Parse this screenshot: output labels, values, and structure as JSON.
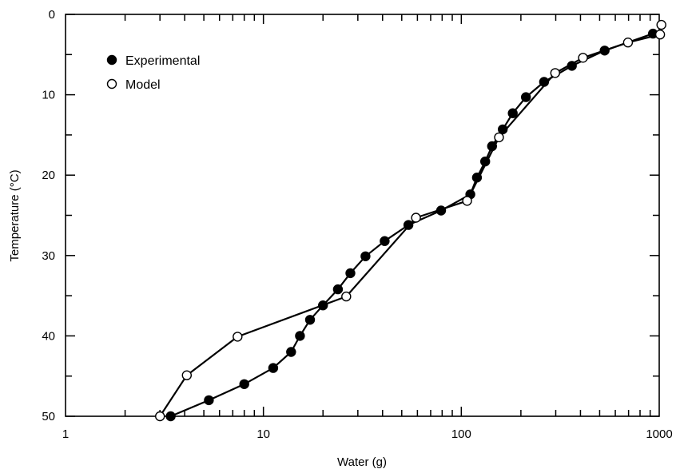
{
  "chart_data": {
    "type": "scatter",
    "xlabel": "Water (g)",
    "ylabel": "Temperature (°C)",
    "x_scale": "log",
    "xlim": [
      1,
      1000
    ],
    "ylim": [
      0,
      50
    ],
    "y_inverted": true,
    "x_tick_labels": [
      "1",
      "10",
      "100",
      "1000"
    ],
    "y_tick_labels": [
      "0",
      "10",
      "20",
      "30",
      "40",
      "50"
    ],
    "grid": false,
    "legend_position": "top-left",
    "colors": {
      "experimental": "#000000",
      "model": "#ffffff",
      "line": "#000000"
    },
    "series": [
      {
        "name": "Experimental",
        "marker": "filled-circle",
        "points": [
          [
            3.4,
            50
          ],
          [
            5.3,
            48
          ],
          [
            8.0,
            46
          ],
          [
            11.2,
            44
          ],
          [
            13.8,
            42
          ],
          [
            15.3,
            40
          ],
          [
            17.2,
            38
          ],
          [
            20.0,
            36.2
          ],
          [
            23.8,
            34.2
          ],
          [
            27.5,
            32.2
          ],
          [
            32.8,
            30.1
          ],
          [
            41,
            28.2
          ],
          [
            54,
            26.2
          ],
          [
            79,
            24.4
          ],
          [
            111,
            22.4
          ],
          [
            120,
            20.3
          ],
          [
            132,
            18.3
          ],
          [
            143,
            16.4
          ],
          [
            162,
            14.3
          ],
          [
            182,
            12.3
          ],
          [
            212,
            10.3
          ],
          [
            262,
            8.4
          ],
          [
            362,
            6.4
          ],
          [
            530,
            4.5
          ],
          [
            930,
            2.4
          ]
        ]
      },
      {
        "name": "Model",
        "marker": "open-circle",
        "points": [
          [
            3.0,
            50
          ],
          [
            4.1,
            44.9
          ],
          [
            7.4,
            40.1
          ],
          [
            26.2,
            35.1
          ],
          [
            59,
            25.3
          ],
          [
            107,
            23.2
          ],
          [
            155,
            15.3
          ],
          [
            298,
            7.3
          ],
          [
            412,
            5.4
          ],
          [
            695,
            3.5
          ],
          [
            1010,
            2.5
          ],
          [
            1025,
            1.3
          ]
        ]
      }
    ]
  }
}
